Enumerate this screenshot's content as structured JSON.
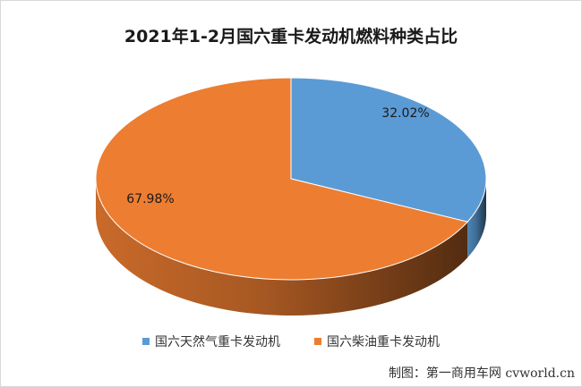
{
  "chart_data": {
    "type": "pie",
    "title": "2021年1-2月国六重卡发动机燃料种类占比",
    "series": [
      {
        "name": "国六天然气重卡发动机",
        "value": 32.02,
        "label": "32.02%",
        "color": "#5b9bd5"
      },
      {
        "name": "国六柴油重卡发动机",
        "value": 67.98,
        "label": "67.98%",
        "color": "#ed7d31"
      }
    ],
    "legend_position": "bottom"
  },
  "credit": "制图：第一商用车网 cvworld.cn"
}
